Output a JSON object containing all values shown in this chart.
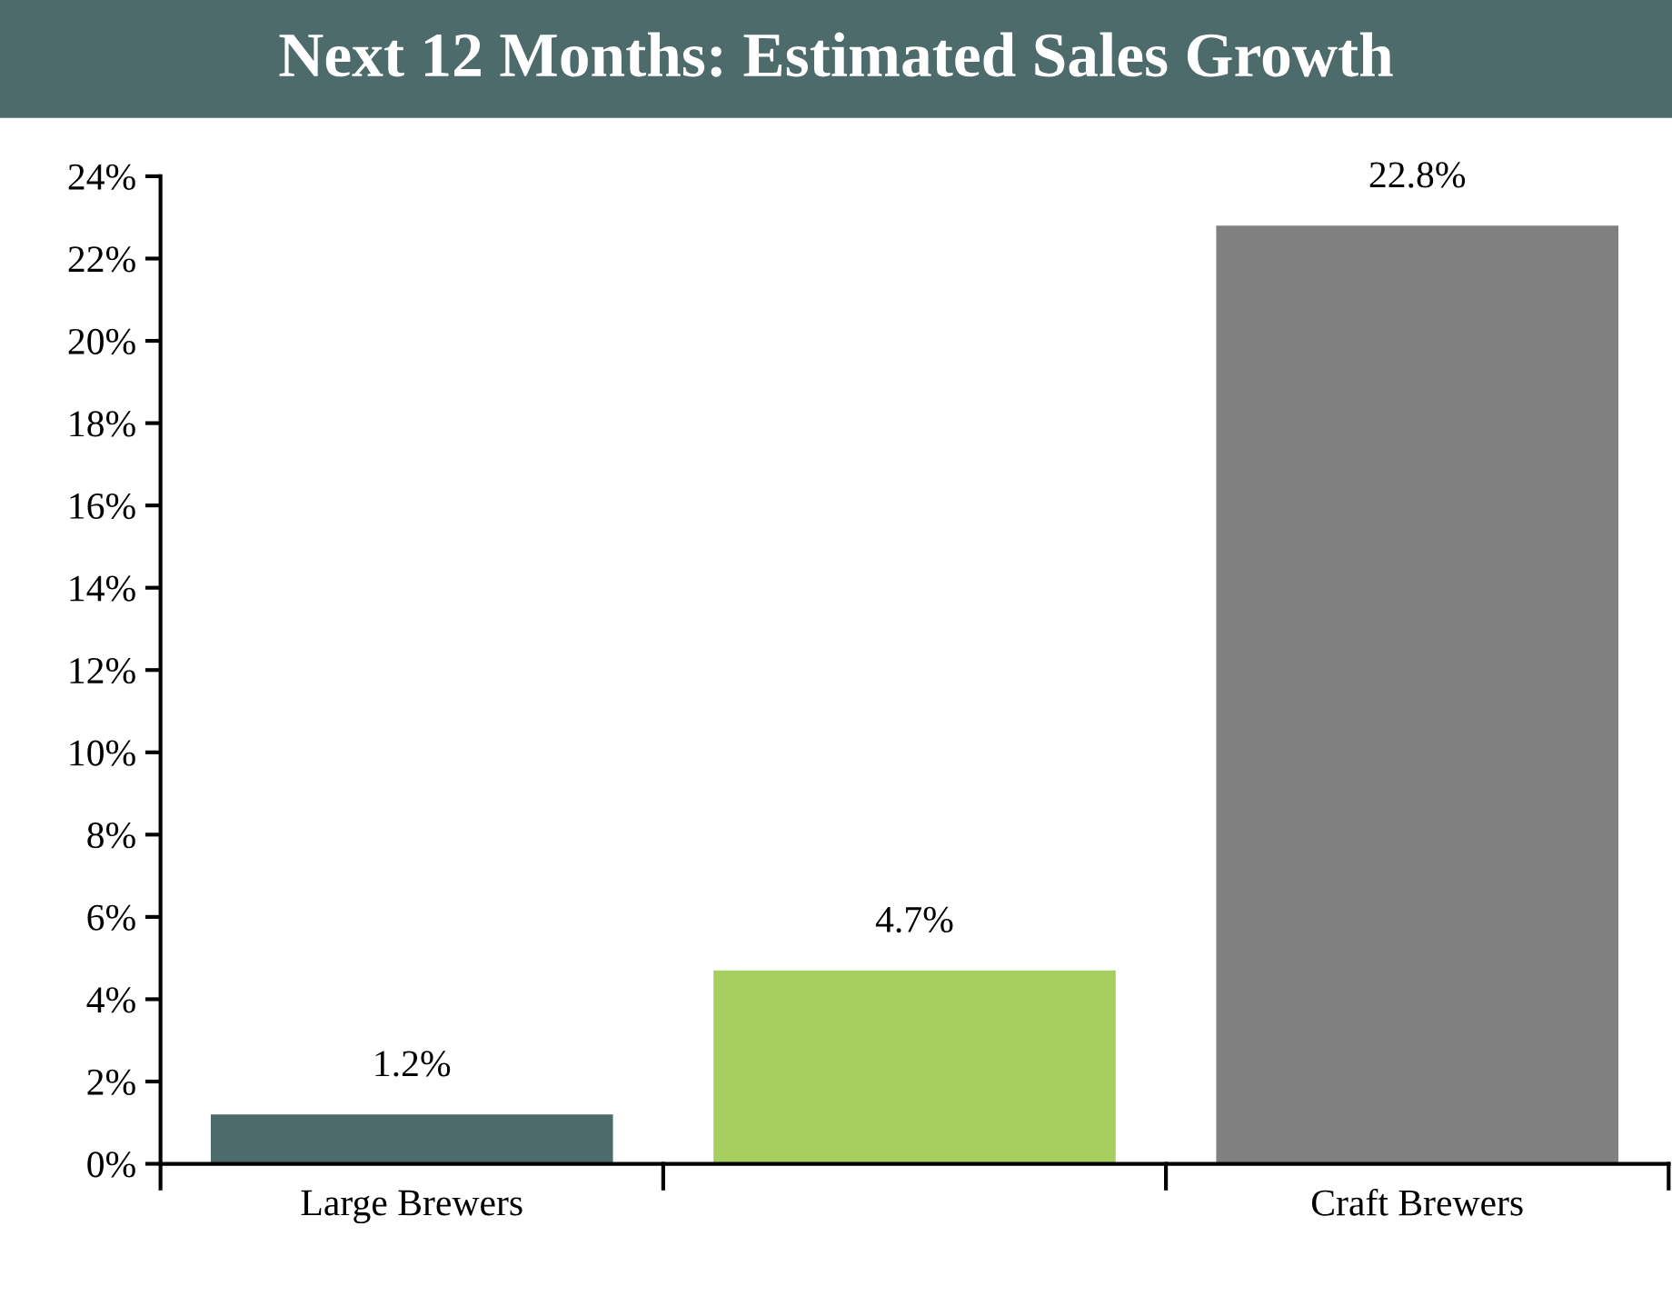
{
  "chart_data": {
    "type": "bar",
    "title": "Next 12 Months: Estimated Sales Growth",
    "categories": [
      "Large Brewers",
      null,
      "Craft Brewers"
    ],
    "values": [
      1.2,
      4.7,
      22.8
    ],
    "colors": [
      "#4d6b6b",
      "#a6cf5f",
      "#808080"
    ],
    "value_labels": [
      "1.2%",
      "4.7%",
      "22.8%"
    ],
    "ylim": [
      0,
      24
    ],
    "yticks": [
      {
        "value": 0,
        "label": "0%"
      },
      {
        "value": 2,
        "label": "2%"
      },
      {
        "value": 4,
        "label": "4%"
      },
      {
        "value": 6,
        "label": "6%"
      },
      {
        "value": 8,
        "label": "8%"
      },
      {
        "value": 10,
        "label": "10%"
      },
      {
        "value": 12,
        "label": "12%"
      },
      {
        "value": 14,
        "label": "14%"
      },
      {
        "value": 16,
        "label": "16%"
      },
      {
        "value": 18,
        "label": "18%"
      },
      {
        "value": 20,
        "label": "20%"
      },
      {
        "value": 22,
        "label": "22%"
      },
      {
        "value": 24,
        "label": "24%"
      }
    ],
    "grid": false,
    "legend": false
  }
}
